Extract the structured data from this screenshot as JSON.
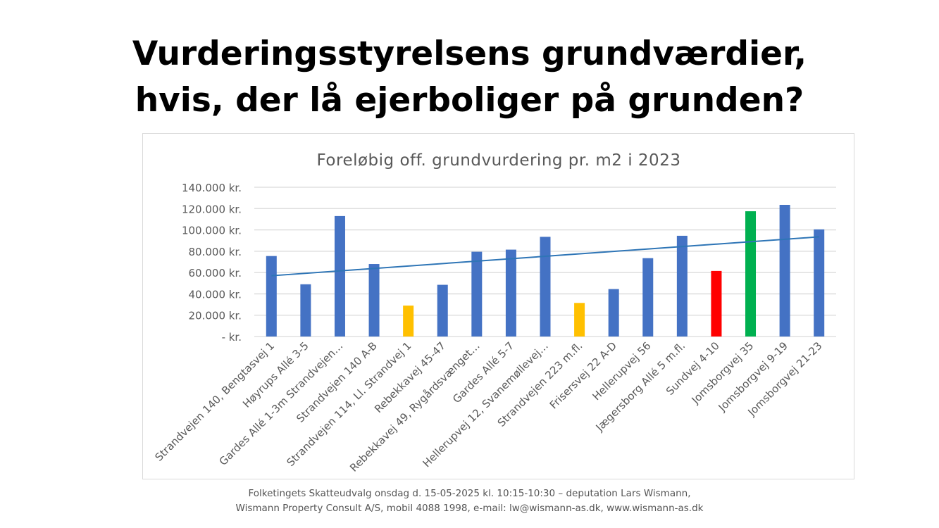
{
  "slide": {
    "title_line1": "Vurderingsstyrelsens grundværdier,",
    "title_line2": "hvis, der lå ejerboliger på grunden?",
    "footer_line1": "Folketingets Skatteudvalg onsdag d. 15-05-2025 kl. 10:15-10:30 –  deputation Lars Wismann,",
    "footer_line2": "Wismann Property Consult A/S, mobil 4088 1998, e-mail: lw@wismann-as.dk, www.wismann-as.dk"
  },
  "chart_data": {
    "type": "bar",
    "title": "Foreløbig off. grundvurdering pr. m2 i 2023",
    "categories": [
      "Strandvejen 140, Bengtasvej 1",
      "Høyrups Allé 3-5",
      "Gardes Allé 1-3m Strandvejen…",
      "Strandvejen 140 A-B",
      "Strandvejen 114, Ll. Strandvej 1",
      "Rebekkavej 45-47",
      "Rebekkavej 49, Rygårdsvænget…",
      "Gardes Allé 5-7",
      "Hellerupvej 12, Svanemøllevej…",
      "Strandvejen 223 m.fl.",
      "Frisersvej 22 A-D",
      "Hellerupvej 56",
      "Jægersborg Allé 5 m.fl.",
      "Sundvej 4-10",
      "Jomsborgvej 35",
      "Jomsborgvej 9-19",
      "Jomsborgvej 21-23"
    ],
    "values": [
      75500,
      49000,
      113000,
      68000,
      29000,
      48500,
      79500,
      81500,
      93500,
      31500,
      44500,
      73500,
      94500,
      61500,
      117500,
      123500,
      100500
    ],
    "bar_colors": [
      "#4472c4",
      "#4472c4",
      "#4472c4",
      "#4472c4",
      "#ffc000",
      "#4472c4",
      "#4472c4",
      "#4472c4",
      "#4472c4",
      "#ffc000",
      "#4472c4",
      "#4472c4",
      "#4472c4",
      "#ff0000",
      "#00b050",
      "#4472c4",
      "#4472c4"
    ],
    "ylim": [
      0,
      140000
    ],
    "yticks": [
      0,
      20000,
      40000,
      60000,
      80000,
      100000,
      120000,
      140000
    ],
    "ytick_labels": [
      "- kr.",
      "20.000 kr.",
      "40.000 kr.",
      "60.000 kr.",
      "80.000 kr.",
      "100.000 kr.",
      "120.000 kr.",
      "140.000 kr."
    ],
    "trendline": {
      "type": "linear",
      "color": "#2e75b6",
      "start_value": 57000,
      "end_value": 93500
    },
    "grid": true,
    "legend": "none"
  }
}
